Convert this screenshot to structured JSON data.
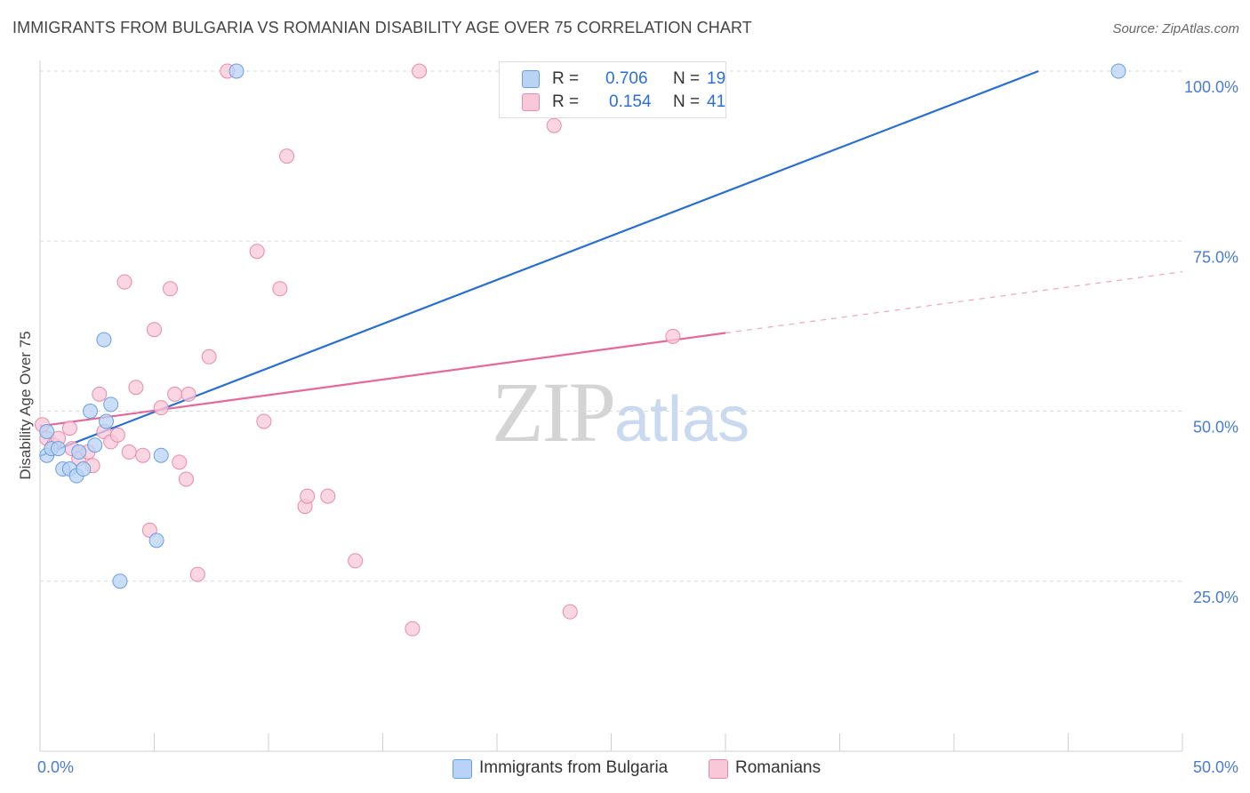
{
  "title": "IMMIGRANTS FROM BULGARIA VS ROMANIAN DISABILITY AGE OVER 75 CORRELATION CHART",
  "source": "Source: ZipAtlas.com",
  "watermark": {
    "zip": "ZIP",
    "atlas": "atlas"
  },
  "stats": {
    "bulgaria": {
      "r_label": "R =",
      "r_value": "0.706",
      "n_label": "N =",
      "n_value": "19"
    },
    "romanians": {
      "r_label": "R =",
      "r_value": "0.154",
      "n_label": "N =",
      "n_value": "41"
    }
  },
  "legend": {
    "bulgaria": "Immigrants from Bulgaria",
    "romanians": "Romanians"
  },
  "colors": {
    "bulgaria_fill": "#b8d3f5",
    "bulgaria_stroke": "#6b9ee0",
    "bulgaria_line": "#2a6fd0",
    "romanians_fill": "#f8c8d8",
    "romanians_stroke": "#e88aab",
    "romanians_line": "#e5689a",
    "grid": "#d9d9d9",
    "tick_text": "#4a7bd0"
  },
  "chart_data": {
    "type": "scatter",
    "title": "IMMIGRANTS FROM BULGARIA VS ROMANIAN DISABILITY AGE OVER 75 CORRELATION CHART",
    "xlabel": "",
    "ylabel": "Disability Age Over 75",
    "xlim": [
      0,
      50
    ],
    "ylim": [
      0,
      102
    ],
    "x_tick_labels": [
      "0.0%",
      "50.0%"
    ],
    "y_ticks": [
      25,
      50,
      75,
      100
    ],
    "y_tick_labels": [
      "25.0%",
      "50.0%",
      "75.0%",
      "100.0%"
    ],
    "grid": true,
    "series": [
      {
        "name": "Immigrants from Bulgaria",
        "r": 0.706,
        "n": 19,
        "points": [
          [
            0.3,
            47.0
          ],
          [
            0.3,
            43.5
          ],
          [
            0.5,
            44.5
          ],
          [
            0.8,
            44.5
          ],
          [
            1.0,
            41.5
          ],
          [
            1.3,
            41.5
          ],
          [
            1.6,
            40.5
          ],
          [
            1.7,
            44.0
          ],
          [
            1.9,
            41.5
          ],
          [
            2.2,
            50.0
          ],
          [
            2.4,
            45.0
          ],
          [
            2.8,
            60.5
          ],
          [
            2.9,
            48.5
          ],
          [
            3.1,
            51.0
          ],
          [
            3.5,
            25.0
          ],
          [
            5.1,
            31.0
          ],
          [
            5.3,
            43.5
          ],
          [
            8.6,
            100.0
          ],
          [
            47.2,
            100.0
          ]
        ],
        "trend": {
          "x0": 0,
          "y0": 43.4,
          "x1": 43.7,
          "y1": 100.0,
          "dashed_to": null
        }
      },
      {
        "name": "Romanians",
        "r": 0.154,
        "n": 41,
        "points": [
          [
            0.1,
            48.0
          ],
          [
            0.3,
            46.0
          ],
          [
            0.6,
            45.0
          ],
          [
            0.8,
            46.0
          ],
          [
            1.3,
            47.5
          ],
          [
            1.4,
            44.5
          ],
          [
            1.7,
            43.0
          ],
          [
            2.1,
            44.0
          ],
          [
            2.3,
            42.0
          ],
          [
            2.6,
            52.5
          ],
          [
            2.8,
            47.0
          ],
          [
            3.1,
            45.5
          ],
          [
            3.4,
            46.5
          ],
          [
            3.7,
            69.0
          ],
          [
            3.9,
            44.0
          ],
          [
            4.2,
            53.5
          ],
          [
            4.5,
            43.5
          ],
          [
            4.8,
            32.5
          ],
          [
            5.0,
            62.0
          ],
          [
            5.3,
            50.5
          ],
          [
            5.7,
            68.0
          ],
          [
            5.9,
            52.5
          ],
          [
            6.1,
            42.5
          ],
          [
            6.4,
            40.0
          ],
          [
            6.5,
            52.5
          ],
          [
            6.9,
            26.0
          ],
          [
            7.4,
            58.0
          ],
          [
            8.2,
            100.0
          ],
          [
            9.5,
            73.5
          ],
          [
            9.8,
            48.5
          ],
          [
            10.5,
            68.0
          ],
          [
            10.8,
            87.5
          ],
          [
            11.6,
            36.0
          ],
          [
            11.7,
            37.5
          ],
          [
            12.6,
            37.5
          ],
          [
            13.8,
            28.0
          ],
          [
            16.3,
            18.0
          ],
          [
            16.6,
            100.0
          ],
          [
            22.5,
            92.0
          ],
          [
            23.2,
            20.5
          ],
          [
            27.7,
            61.0
          ]
        ],
        "trend": {
          "x0": 0,
          "y0": 47.8,
          "x1": 30.0,
          "y1": 61.5,
          "dashed_to": [
            50.0,
            70.5
          ]
        }
      }
    ]
  }
}
